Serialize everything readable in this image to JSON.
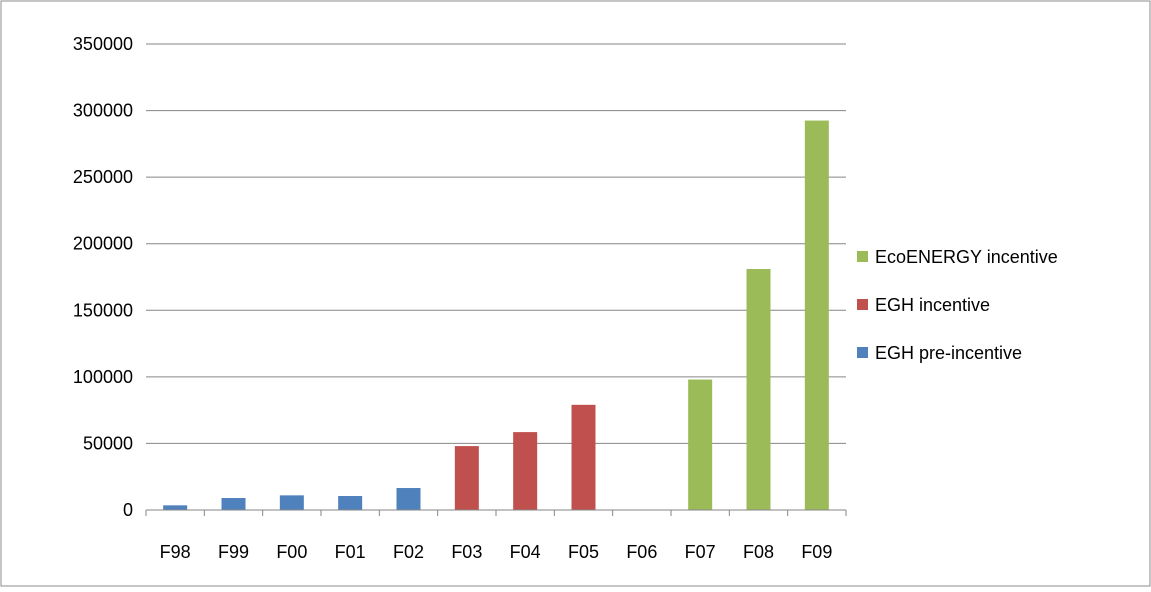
{
  "chart_data": {
    "type": "bar",
    "categories": [
      "F98",
      "F99",
      "F00",
      "F01",
      "F02",
      "F03",
      "F04",
      "F05",
      "F06",
      "F07",
      "F08",
      "F09"
    ],
    "series": [
      {
        "name": "EGH pre-incentive",
        "color": "#4F81BD",
        "values": [
          3500,
          9000,
          11000,
          10500,
          16500,
          null,
          null,
          null,
          null,
          null,
          null,
          null
        ]
      },
      {
        "name": "EGH incentive",
        "color": "#C0504D",
        "values": [
          null,
          null,
          null,
          null,
          null,
          48000,
          58500,
          79000,
          null,
          null,
          null,
          null
        ]
      },
      {
        "name": "EcoENERGY incentive",
        "color": "#9BBB59",
        "values": [
          null,
          null,
          null,
          null,
          null,
          null,
          null,
          null,
          null,
          98000,
          181000,
          292500
        ]
      }
    ],
    "yticks": [
      "0",
      "50000",
      "100000",
      "150000",
      "200000",
      "250000",
      "300000",
      "350000"
    ],
    "ylim": [
      0,
      350000
    ],
    "grid": true,
    "legend_order": [
      "EcoENERGY incentive",
      "EGH incentive",
      "EGH pre-incentive"
    ],
    "legend_position": "right",
    "title": "",
    "xlabel": "",
    "ylabel": ""
  }
}
